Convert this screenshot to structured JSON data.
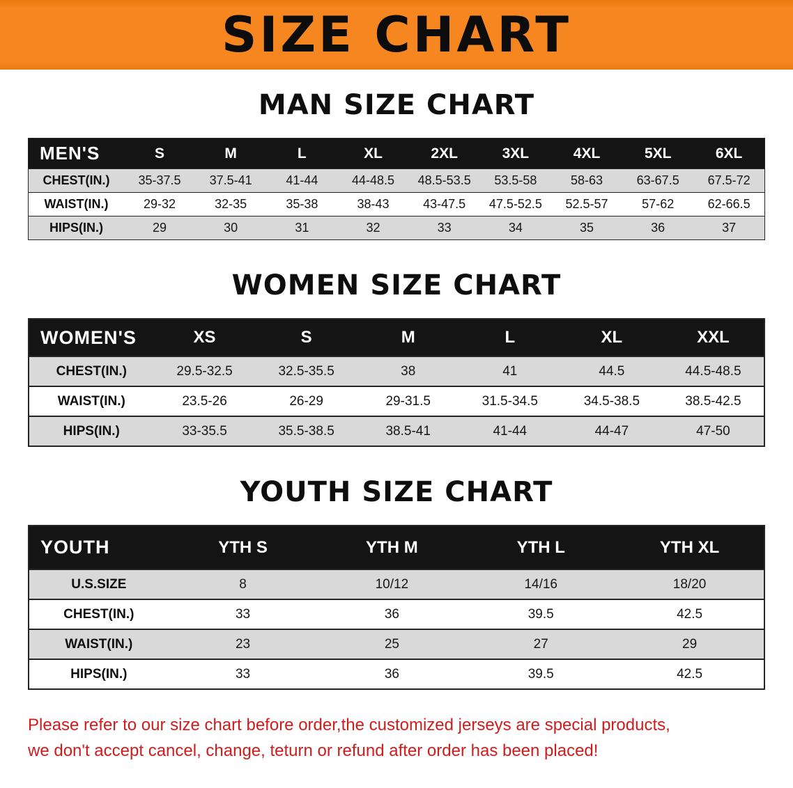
{
  "banner": {
    "title": "SIZE CHART"
  },
  "colors": {
    "banner-bg": "#f6861f",
    "header-bg": "#141414",
    "stripe": "#d9d9d9",
    "disclaimer-red": "#d11c1c"
  },
  "sections": [
    {
      "heading": "MAN SIZE CHART",
      "table": {
        "corner": "MEN'S",
        "columns": [
          "S",
          "M",
          "L",
          "XL",
          "2XL",
          "3XL",
          "4XL",
          "5XL",
          "6XL"
        ],
        "rows": [
          {
            "label": "CHEST(IN.)",
            "values": [
              "35-37.5",
              "37.5-41",
              "41-44",
              "44-48.5",
              "48.5-53.5",
              "53.5-58",
              "58-63",
              "63-67.5",
              "67.5-72"
            ]
          },
          {
            "label": "WAIST(IN.)",
            "values": [
              "29-32",
              "32-35",
              "35-38",
              "38-43",
              "43-47.5",
              "47.5-52.5",
              "52.5-57",
              "57-62",
              "62-66.5"
            ]
          },
          {
            "label": "HIPS(IN.)",
            "values": [
              "29",
              "30",
              "31",
              "32",
              "33",
              "34",
              "35",
              "36",
              "37"
            ]
          }
        ]
      }
    },
    {
      "heading": "WOMEN SIZE CHART",
      "table": {
        "corner": "WOMEN'S",
        "columns": [
          "XS",
          "S",
          "M",
          "L",
          "XL",
          "XXL"
        ],
        "rows": [
          {
            "label": "CHEST(IN.)",
            "values": [
              "29.5-32.5",
              "32.5-35.5",
              "38",
              "41",
              "44.5",
              "44.5-48.5"
            ]
          },
          {
            "label": "WAIST(IN.)",
            "values": [
              "23.5-26",
              "26-29",
              "29-31.5",
              "31.5-34.5",
              "34.5-38.5",
              "38.5-42.5"
            ]
          },
          {
            "label": "HIPS(IN.)",
            "values": [
              "33-35.5",
              "35.5-38.5",
              "38.5-41",
              "41-44",
              "44-47",
              "47-50"
            ]
          }
        ]
      }
    },
    {
      "heading": "YOUTH SIZE CHART",
      "table": {
        "corner": "YOUTH",
        "columns": [
          "YTH S",
          "YTH M",
          "YTH L",
          "YTH XL"
        ],
        "rows": [
          {
            "label": "U.S.SIZE",
            "values": [
              "8",
              "10/12",
              "14/16",
              "18/20"
            ]
          },
          {
            "label": "CHEST(IN.)",
            "values": [
              "33",
              "36",
              "39.5",
              "42.5"
            ]
          },
          {
            "label": "WAIST(IN.)",
            "values": [
              "23",
              "25",
              "27",
              "29"
            ]
          },
          {
            "label": "HIPS(IN.)",
            "values": [
              "33",
              "36",
              "39.5",
              "42.5"
            ]
          }
        ]
      }
    }
  ],
  "disclaimer": {
    "lines": [
      "Please refer to our size chart before order,the customized jerseys are special products,",
      "we don't accept cancel, change, teturn or refund after order has been placed!"
    ]
  }
}
